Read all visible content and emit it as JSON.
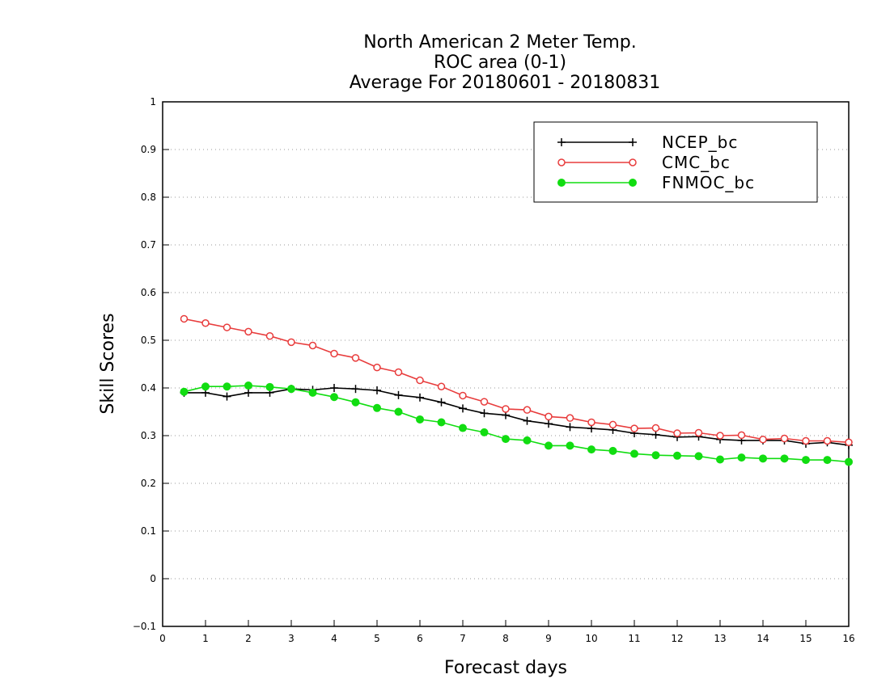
{
  "chart_data": {
    "type": "line",
    "title_lines": [
      "North American 2 Meter Temp.",
      "ROC area (0-1)",
      "Average For 20180601 - 20180831"
    ],
    "xlabel": "Forecast days",
    "ylabel": "Skill Scores",
    "xlim": [
      0,
      16
    ],
    "ylim": [
      -0.1,
      1
    ],
    "x_ticks": [
      0,
      1,
      2,
      3,
      4,
      5,
      6,
      7,
      8,
      9,
      10,
      11,
      12,
      13,
      14,
      15,
      16
    ],
    "x_tick_labels": [
      "0",
      "1",
      "2",
      "3",
      "4",
      "5",
      "6",
      "7",
      "8",
      "9",
      "10",
      "11",
      "12",
      "13",
      "14",
      "15",
      "16"
    ],
    "y_ticks": [
      -0.1,
      0,
      0.1,
      0.2,
      0.3,
      0.4,
      0.5,
      0.6,
      0.7,
      0.8,
      0.9,
      1
    ],
    "y_tick_labels": [
      "−0.1",
      "0",
      "0.1",
      "0.2",
      "0.3",
      "0.4",
      "0.5",
      "0.6",
      "0.7",
      "0.8",
      "0.9",
      "1"
    ],
    "grid": "horizontal dotted",
    "legend_position": "top-right",
    "x": [
      0.5,
      1,
      1.5,
      2,
      2.5,
      3,
      3.5,
      4,
      4.5,
      5,
      5.5,
      6,
      6.5,
      7,
      7.5,
      8,
      8.5,
      9,
      9.5,
      10,
      10.5,
      11,
      11.5,
      12,
      12.5,
      13,
      13.5,
      14,
      14.5,
      15,
      15.5,
      16
    ],
    "series": [
      {
        "name": "NCEP_bc",
        "color": "#000000",
        "marker": "plus",
        "values": [
          0.39,
          0.39,
          0.382,
          0.39,
          0.39,
          0.398,
          0.396,
          0.4,
          0.398,
          0.395,
          0.385,
          0.38,
          0.37,
          0.357,
          0.347,
          0.343,
          0.331,
          0.325,
          0.318,
          0.315,
          0.312,
          0.305,
          0.302,
          0.297,
          0.298,
          0.292,
          0.29,
          0.29,
          0.29,
          0.283,
          0.286,
          0.28
        ]
      },
      {
        "name": "CMC_bc",
        "color": "#e83c3c",
        "marker": "open-circle",
        "values": [
          0.545,
          0.536,
          0.527,
          0.518,
          0.509,
          0.496,
          0.489,
          0.472,
          0.463,
          0.443,
          0.433,
          0.416,
          0.403,
          0.384,
          0.371,
          0.356,
          0.354,
          0.34,
          0.337,
          0.328,
          0.323,
          0.315,
          0.316,
          0.305,
          0.306,
          0.3,
          0.301,
          0.292,
          0.294,
          0.289,
          0.289,
          0.286
        ]
      },
      {
        "name": "FNMOC_bc",
        "color": "#11dd11",
        "marker": "filled-circle",
        "values": [
          0.392,
          0.403,
          0.403,
          0.405,
          0.402,
          0.398,
          0.39,
          0.381,
          0.37,
          0.358,
          0.35,
          0.334,
          0.328,
          0.316,
          0.307,
          0.293,
          0.29,
          0.279,
          0.279,
          0.271,
          0.268,
          0.262,
          0.259,
          0.258,
          0.257,
          0.25,
          0.254,
          0.252,
          0.252,
          0.249,
          0.249,
          0.245
        ]
      }
    ]
  }
}
